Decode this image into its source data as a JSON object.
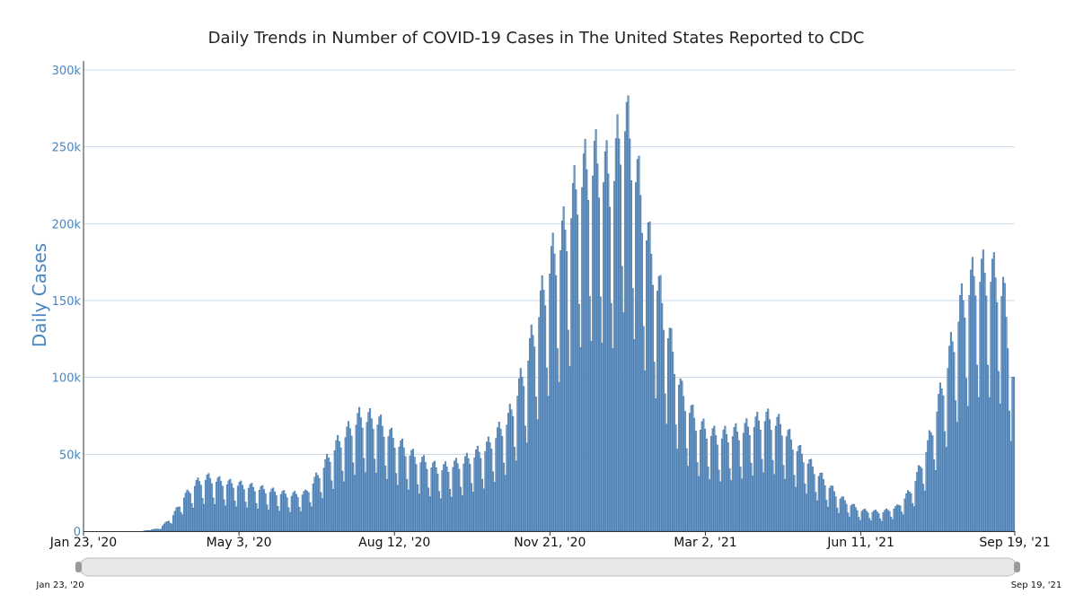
{
  "chart_data": {
    "type": "bar",
    "title": "Daily Trends in Number of COVID-19 Cases in The United States Reported to CDC",
    "ylabel": "Daily Cases",
    "xlabel": "",
    "ylim": [
      0,
      300000
    ],
    "y_ticks": [
      "0",
      "50k",
      "100k",
      "150k",
      "200k",
      "250k",
      "300k"
    ],
    "y_tick_values": [
      0,
      50000,
      100000,
      150000,
      200000,
      250000,
      300000
    ],
    "x_ticks": [
      "Jan 23, '20",
      "May 3, '20",
      "Aug 12, '20",
      "Nov 21, '20",
      "Mar 2, '21",
      "Jun 11, '21",
      "Sep 19, '21"
    ],
    "x_tick_dates": [
      "2020-01-23",
      "2020-05-03",
      "2020-08-12",
      "2020-11-21",
      "2021-03-02",
      "2021-06-11",
      "2021-09-19"
    ],
    "date_range": [
      "2020-01-23",
      "2021-09-19"
    ],
    "grid": true,
    "bar_color": "#6f9ecf",
    "series": [
      {
        "x_start": "2020-01-23",
        "x_end": "2021-09-19",
        "trend_points": [
          [
            "2020-01-23",
            0
          ],
          [
            "2020-03-01",
            0
          ],
          [
            "2020-03-12",
            1500
          ],
          [
            "2020-03-20",
            8000
          ],
          [
            "2020-03-28",
            20000
          ],
          [
            "2020-04-05",
            28000
          ],
          [
            "2020-04-12",
            31000
          ],
          [
            "2020-04-25",
            28000
          ],
          [
            "2020-05-03",
            27000
          ],
          [
            "2020-05-20",
            24000
          ],
          [
            "2020-06-05",
            21000
          ],
          [
            "2020-06-15",
            22000
          ],
          [
            "2020-06-25",
            35000
          ],
          [
            "2020-07-05",
            50000
          ],
          [
            "2020-07-20",
            66000
          ],
          [
            "2020-07-31",
            65000
          ],
          [
            "2020-08-12",
            53000
          ],
          [
            "2020-08-25",
            43000
          ],
          [
            "2020-09-10",
            36000
          ],
          [
            "2020-09-25",
            40000
          ],
          [
            "2020-10-10",
            48000
          ],
          [
            "2020-10-25",
            65000
          ],
          [
            "2020-11-05",
            95000
          ],
          [
            "2020-11-21",
            155000
          ],
          [
            "2020-12-01",
            175000
          ],
          [
            "2020-12-10",
            205000
          ],
          [
            "2020-12-20",
            215000
          ],
          [
            "2021-01-01",
            205000
          ],
          [
            "2021-01-08",
            245000
          ],
          [
            "2021-01-15",
            215000
          ],
          [
            "2021-01-25",
            165000
          ],
          [
            "2021-02-05",
            120000
          ],
          [
            "2021-02-15",
            80000
          ],
          [
            "2021-02-25",
            62000
          ],
          [
            "2021-03-10",
            55000
          ],
          [
            "2021-03-25",
            58000
          ],
          [
            "2021-04-10",
            66000
          ],
          [
            "2021-04-20",
            62000
          ],
          [
            "2021-05-01",
            48000
          ],
          [
            "2021-05-15",
            33000
          ],
          [
            "2021-05-28",
            20000
          ],
          [
            "2021-06-11",
            12000
          ],
          [
            "2021-06-25",
            11000
          ],
          [
            "2021-07-05",
            14000
          ],
          [
            "2021-07-15",
            25000
          ],
          [
            "2021-07-25",
            50000
          ],
          [
            "2021-08-05",
            90000
          ],
          [
            "2021-08-15",
            130000
          ],
          [
            "2021-08-25",
            150000
          ],
          [
            "2021-09-05",
            150000
          ],
          [
            "2021-09-12",
            140000
          ],
          [
            "2021-09-19",
            85000
          ]
        ],
        "weekly_pattern": [
          1.18,
          1.22,
          1.12,
          1.02,
          0.72,
          0.58,
          1.08
        ]
      }
    ],
    "range_slider": {
      "start_label": "Jan 23, '20",
      "end_label": "Sep 19, '21"
    }
  }
}
